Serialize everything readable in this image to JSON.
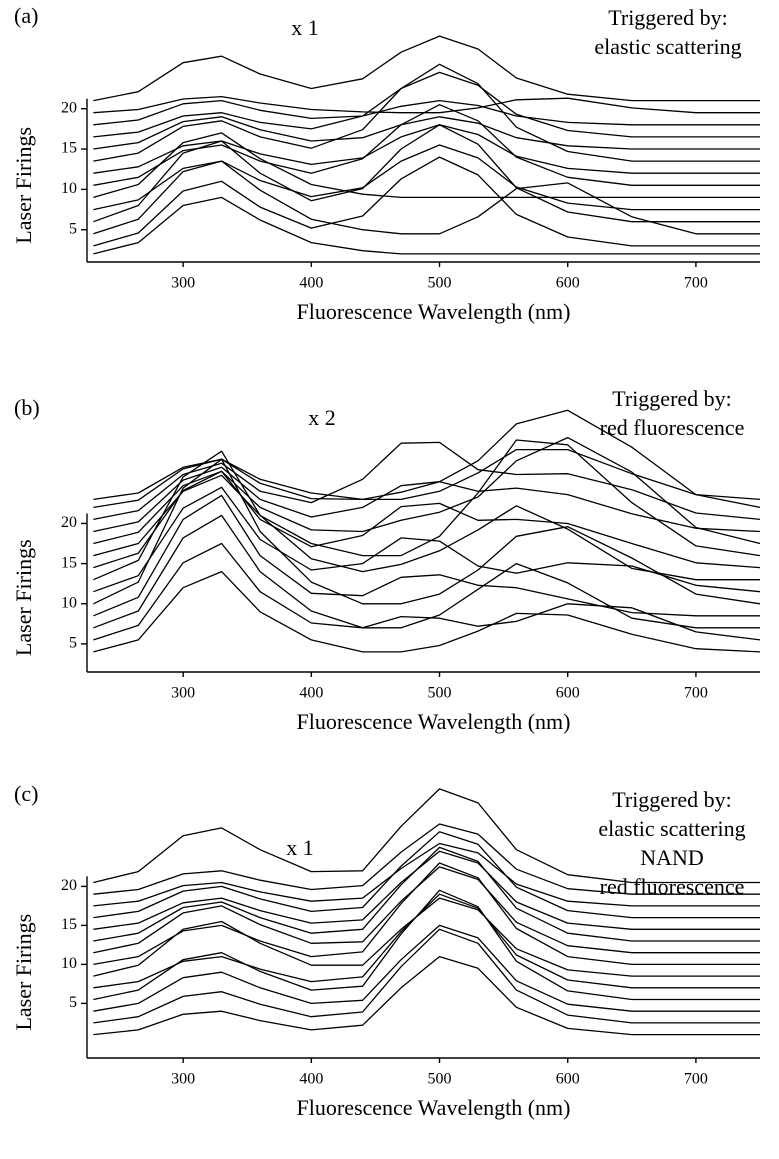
{
  "chart_data": [
    {
      "type": "line",
      "panel_label": "(a)",
      "scale_label": "x 1",
      "trigger": [
        "Triggered by:",
        "elastic scattering"
      ],
      "xlabel": "Fluorescence Wavelength (nm)",
      "ylabel": "Laser Firings",
      "color": "#000000",
      "xlim": [
        225,
        750
      ],
      "xticks": [
        300,
        400,
        500,
        600,
        700
      ],
      "ylim": [
        1,
        30
      ],
      "yticks": [
        5,
        10,
        15,
        20
      ],
      "x": [
        230,
        265,
        300,
        330,
        360,
        400,
        440,
        470,
        500,
        530,
        560,
        600,
        650,
        700,
        750
      ],
      "series": [
        {
          "values": [
            2,
            3.4,
            8,
            9,
            6.2,
            3.4,
            2.4,
            2,
            2,
            2,
            2,
            2,
            2,
            2,
            2
          ]
        },
        {
          "values": [
            3,
            4.6,
            9.8,
            11,
            7.8,
            5.2,
            6.7,
            11.3,
            14,
            11.8,
            6.9,
            4.1,
            3,
            3,
            3
          ]
        },
        {
          "values": [
            4.5,
            6.3,
            12.2,
            13.5,
            9.9,
            6.3,
            5,
            4.5,
            4.5,
            6.6,
            10.1,
            10.8,
            6.6,
            4.5,
            4.5
          ]
        },
        {
          "values": [
            6,
            8,
            14.5,
            16,
            12,
            8.6,
            10.1,
            15,
            18,
            15.6,
            10.2,
            7.2,
            6,
            6,
            6
          ]
        },
        {
          "values": [
            7.5,
            8.7,
            12.6,
            13.5,
            11.1,
            9.1,
            10.2,
            13.5,
            15.5,
            13.9,
            10.3,
            8.3,
            7.5,
            7.5,
            7.5
          ]
        },
        {
          "values": [
            9,
            10.6,
            15.8,
            17,
            13.8,
            10.6,
            9.4,
            9,
            9,
            9,
            9,
            9,
            9,
            9,
            9
          ]
        },
        {
          "values": [
            10.5,
            11.5,
            14.8,
            15.5,
            13.5,
            12,
            13.8,
            18,
            20.5,
            18.5,
            14,
            11.5,
            10.5,
            10.5,
            10.5
          ]
        },
        {
          "values": [
            12,
            12.8,
            15.4,
            16,
            14.4,
            13.1,
            13.9,
            16.5,
            18,
            16.8,
            14.1,
            12.6,
            12,
            12,
            12
          ]
        },
        {
          "values": [
            13.5,
            14.5,
            17.8,
            18.5,
            16.5,
            15.1,
            17.4,
            22.5,
            25.5,
            23.1,
            17.7,
            14.7,
            13.5,
            13.5,
            13.5
          ]
        },
        {
          "values": [
            15,
            15.8,
            18.4,
            19,
            17.4,
            16,
            16.4,
            18,
            19,
            18.2,
            16.4,
            15.4,
            15,
            15,
            15
          ]
        },
        {
          "values": [
            16.5,
            17.1,
            19.1,
            19.5,
            18.3,
            17.5,
            19.1,
            22.5,
            24.5,
            22.9,
            19.3,
            17.3,
            16.5,
            16.5,
            16.5
          ]
        },
        {
          "values": [
            18,
            18.6,
            20.6,
            21,
            19.8,
            18.8,
            19.1,
            20.3,
            21,
            20.4,
            19.1,
            18.3,
            18,
            18,
            18
          ]
        },
        {
          "values": [
            19.5,
            19.9,
            21.2,
            21.5,
            20.7,
            19.9,
            19.6,
            19.5,
            19.5,
            20.1,
            21.1,
            21.3,
            20.1,
            19.5,
            19.5
          ]
        },
        {
          "values": [
            21,
            22.1,
            25.7,
            26.5,
            24.3,
            22.5,
            23.7,
            27,
            29,
            27.4,
            23.8,
            21.8,
            21,
            21,
            21
          ]
        }
      ]
    },
    {
      "type": "line",
      "panel_label": "(b)",
      "scale_label": "x 2",
      "trigger": [
        "Triggered by:",
        "red fluorescence"
      ],
      "xlabel": "Fluorescence Wavelength (nm)",
      "ylabel": "Laser Firings",
      "color": "#000000",
      "xlim": [
        225,
        750
      ],
      "xticks": [
        300,
        400,
        500,
        600,
        700
      ],
      "ylim": [
        1.5,
        36
      ],
      "yticks": [
        5,
        10,
        15,
        20
      ],
      "x": [
        230,
        265,
        300,
        330,
        360,
        400,
        440,
        470,
        500,
        530,
        560,
        600,
        650,
        700,
        750
      ],
      "series": [
        {
          "values": [
            4,
            5.5,
            12,
            14,
            9,
            5.5,
            4,
            4,
            4.8,
            6.6,
            8.8,
            8.6,
            6.2,
            4.4,
            4
          ]
        },
        {
          "values": [
            5.5,
            7.3,
            15.1,
            17.5,
            11.5,
            7.6,
            7,
            8.4,
            8.2,
            7.2,
            7.8,
            10,
            9.5,
            6.5,
            5.5
          ]
        },
        {
          "values": [
            7,
            9.1,
            18.2,
            21,
            14,
            9.1,
            7,
            7,
            8.6,
            11.8,
            15,
            12.6,
            8.2,
            7,
            7
          ]
        },
        {
          "values": [
            8.5,
            10.8,
            20.5,
            23.5,
            16,
            11.3,
            11,
            13.3,
            13.6,
            12.3,
            12,
            10.6,
            8.9,
            8.5,
            8.5
          ]
        },
        {
          "values": [
            10,
            12.7,
            24.4,
            28,
            19,
            12.7,
            10,
            10,
            11.2,
            14.2,
            18.4,
            19.6,
            15.7,
            11.2,
            10
          ]
        },
        {
          "values": [
            11.5,
            13.5,
            21.9,
            24.5,
            18,
            14.2,
            15,
            18.2,
            17.8,
            14.7,
            13.8,
            15.1,
            14.7,
            12.3,
            11.5
          ]
        },
        {
          "values": [
            13,
            15.4,
            25.8,
            29,
            21,
            15.6,
            14,
            14.9,
            16.6,
            19.2,
            22.2,
            19.3,
            14.4,
            13,
            13
          ]
        },
        {
          "values": [
            14.5,
            16.3,
            24.1,
            26.5,
            20.5,
            17.1,
            18.5,
            22.1,
            22.5,
            20.4,
            20.5,
            20,
            17.5,
            15.1,
            14.5
          ]
        },
        {
          "values": [
            16,
            17.5,
            24,
            26,
            21,
            17.5,
            16,
            16,
            18.4,
            23.8,
            30.4,
            29.8,
            22.6,
            17.2,
            16
          ]
        },
        {
          "values": [
            17.5,
            18.9,
            24.7,
            26.5,
            22,
            19.2,
            19,
            20.4,
            21.4,
            23.3,
            27.8,
            30.7,
            26.4,
            19.5,
            17.5
          ]
        },
        {
          "values": [
            19,
            20.2,
            25.4,
            27,
            23,
            20.8,
            22,
            24.7,
            25.2,
            24,
            24.4,
            23.6,
            21.2,
            19.4,
            19
          ]
        },
        {
          "values": [
            20.5,
            21.6,
            26.1,
            27.5,
            24,
            22.6,
            25.5,
            30,
            30.1,
            26.7,
            26.1,
            26.2,
            24.2,
            21.3,
            20.5
          ]
        },
        {
          "values": [
            22,
            22.9,
            26.8,
            28,
            25,
            23.1,
            23,
            23.9,
            25.2,
            27.8,
            32.4,
            34.1,
            29.5,
            23.6,
            22
          ]
        },
        {
          "values": [
            23,
            23.8,
            27,
            28,
            25.5,
            23.8,
            23,
            23,
            24,
            26.3,
            29.2,
            29.2,
            26.2,
            23.6,
            23
          ]
        }
      ]
    },
    {
      "type": "line",
      "panel_label": "(c)",
      "scale_label": "x 1",
      "trigger": [
        "Triggered by:",
        "elastic scattering",
        "NAND",
        "red fluorescence"
      ],
      "xlabel": "Fluorescence Wavelength (nm)",
      "ylabel": "Laser Firings",
      "color": "#000000",
      "xlim": [
        225,
        750
      ],
      "xticks": [
        300,
        400,
        500,
        600,
        700
      ],
      "ylim": [
        -2,
        33
      ],
      "yticks": [
        5,
        10,
        15,
        20
      ],
      "x": [
        230,
        265,
        300,
        330,
        360,
        400,
        440,
        470,
        500,
        530,
        560,
        600,
        650,
        700,
        750
      ],
      "series": [
        {
          "values": [
            1,
            1.6,
            3.6,
            4,
            2.8,
            1.6,
            2.2,
            7,
            11,
            9.5,
            4.5,
            1.8,
            1,
            1,
            1
          ]
        },
        {
          "values": [
            2.5,
            3.3,
            5.9,
            6.5,
            4.9,
            3.3,
            3.9,
            9.7,
            14.5,
            12.7,
            6.7,
            3.5,
            2.5,
            2.5,
            2.5
          ]
        },
        {
          "values": [
            4,
            5,
            8.3,
            9,
            7,
            5,
            5.4,
            10.6,
            15,
            13.4,
            7.9,
            4.9,
            4,
            4,
            4
          ]
        },
        {
          "values": [
            5.5,
            6.7,
            10.6,
            11.5,
            9.1,
            6.7,
            7.2,
            13.9,
            19.5,
            17.4,
            10.4,
            6.6,
            5.5,
            5.5,
            5.5
          ]
        },
        {
          "values": [
            7,
            7.8,
            10.4,
            11,
            9.4,
            7.8,
            8.4,
            14.2,
            19,
            17.2,
            11.2,
            8,
            7,
            7,
            7
          ]
        },
        {
          "values": [
            8.5,
            9.9,
            14.5,
            15.5,
            12.7,
            9.9,
            9.9,
            14.5,
            18.5,
            17,
            12,
            9.3,
            8.5,
            8.5,
            8.5
          ]
        },
        {
          "values": [
            10,
            11,
            14.3,
            15,
            13,
            11,
            11.6,
            17.8,
            23,
            21.1,
            14.6,
            11,
            10,
            10,
            10
          ]
        },
        {
          "values": [
            11.5,
            12.7,
            16.6,
            17.5,
            15.1,
            12.7,
            12.9,
            18.1,
            22.5,
            20.9,
            15.4,
            12.4,
            11.5,
            11.5,
            11.5
          ]
        },
        {
          "values": [
            13,
            14,
            17.3,
            18,
            16,
            14,
            14.5,
            20.2,
            25,
            23.2,
            17.2,
            14,
            13,
            13,
            13
          ]
        },
        {
          "values": [
            14.5,
            15.3,
            17.9,
            18.5,
            16.9,
            15.3,
            15.7,
            20.5,
            24.5,
            23,
            18,
            15.3,
            14.5,
            14.5,
            14.5
          ]
        },
        {
          "values": [
            16,
            16.8,
            19.4,
            20,
            18.4,
            16.8,
            17.3,
            22.6,
            27,
            25.4,
            19.9,
            16.9,
            16,
            16,
            16
          ]
        },
        {
          "values": [
            17.5,
            18.1,
            20.1,
            20.5,
            19.3,
            18.1,
            18.5,
            22.3,
            25.5,
            24.3,
            20.3,
            18.1,
            17.5,
            17.5,
            17.5
          ]
        },
        {
          "values": [
            19,
            19.6,
            21.6,
            22,
            20.8,
            19.6,
            20.1,
            24.4,
            28,
            26.7,
            22.2,
            19.7,
            19,
            19,
            19
          ]
        },
        {
          "values": [
            20.5,
            21.9,
            26.5,
            27.5,
            24.7,
            21.9,
            22,
            27.7,
            32.5,
            30.7,
            24.7,
            21.5,
            20.5,
            20.5,
            20.5
          ]
        }
      ]
    }
  ]
}
